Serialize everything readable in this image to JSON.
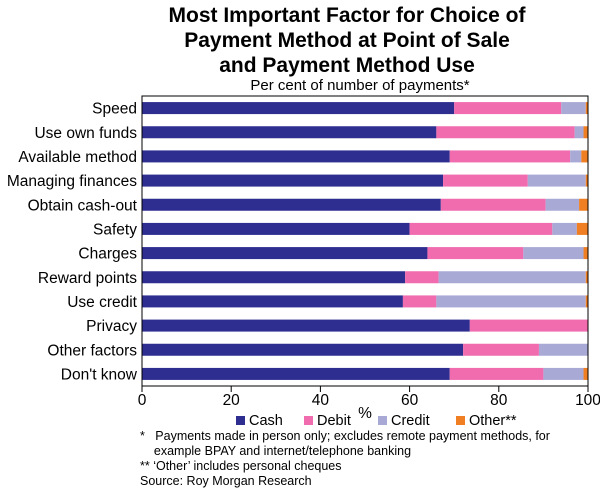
{
  "chart_data": {
    "type": "bar",
    "orientation": "horizontal",
    "stacked": true,
    "title_lines": [
      "Most Important Factor for Choice of",
      "Payment Method at Point of Sale",
      "and Payment Method Use"
    ],
    "subtitle": "Per cent of number of payments*",
    "xlabel": "%",
    "xlim": [
      0,
      100
    ],
    "xticks": [
      "0",
      "20",
      "40",
      "60",
      "80",
      "100"
    ],
    "grid": false,
    "legend_position": "bottom",
    "categories": [
      "Speed",
      "Use own funds",
      "Available method",
      "Managing finances",
      "Obtain cash-out",
      "Safety",
      "Charges",
      "Reward points",
      "Use credit",
      "Privacy",
      "Other factors",
      "Don't know"
    ],
    "series": [
      {
        "name": "Cash",
        "color": "#2e2e90",
        "values": [
          70,
          66,
          69,
          67.5,
          67,
          60,
          64,
          59,
          58.5,
          73.5,
          72,
          69
        ]
      },
      {
        "name": "Debit",
        "color": "#f06cae",
        "values": [
          24,
          31,
          27,
          19,
          23.5,
          32,
          21.5,
          7.5,
          7.5,
          26.5,
          17,
          21
        ]
      },
      {
        "name": "Credit",
        "color": "#a9a9d6",
        "values": [
          5.5,
          2,
          2.5,
          13,
          7.5,
          5.5,
          13.5,
          33,
          33.5,
          0,
          11,
          9
        ]
      },
      {
        "name": "Other**",
        "color": "#ef7f22",
        "values": [
          0.5,
          1,
          1.5,
          0.5,
          2,
          2.5,
          1,
          0.5,
          0.5,
          0,
          0,
          1
        ]
      }
    ]
  },
  "notes": [
    "*   Payments made in person only; excludes remote payment methods, for",
    "    example BPAY and internet/telephone banking",
    "** ‘Other’ includes personal cheques",
    "Source: Roy Morgan Research"
  ]
}
